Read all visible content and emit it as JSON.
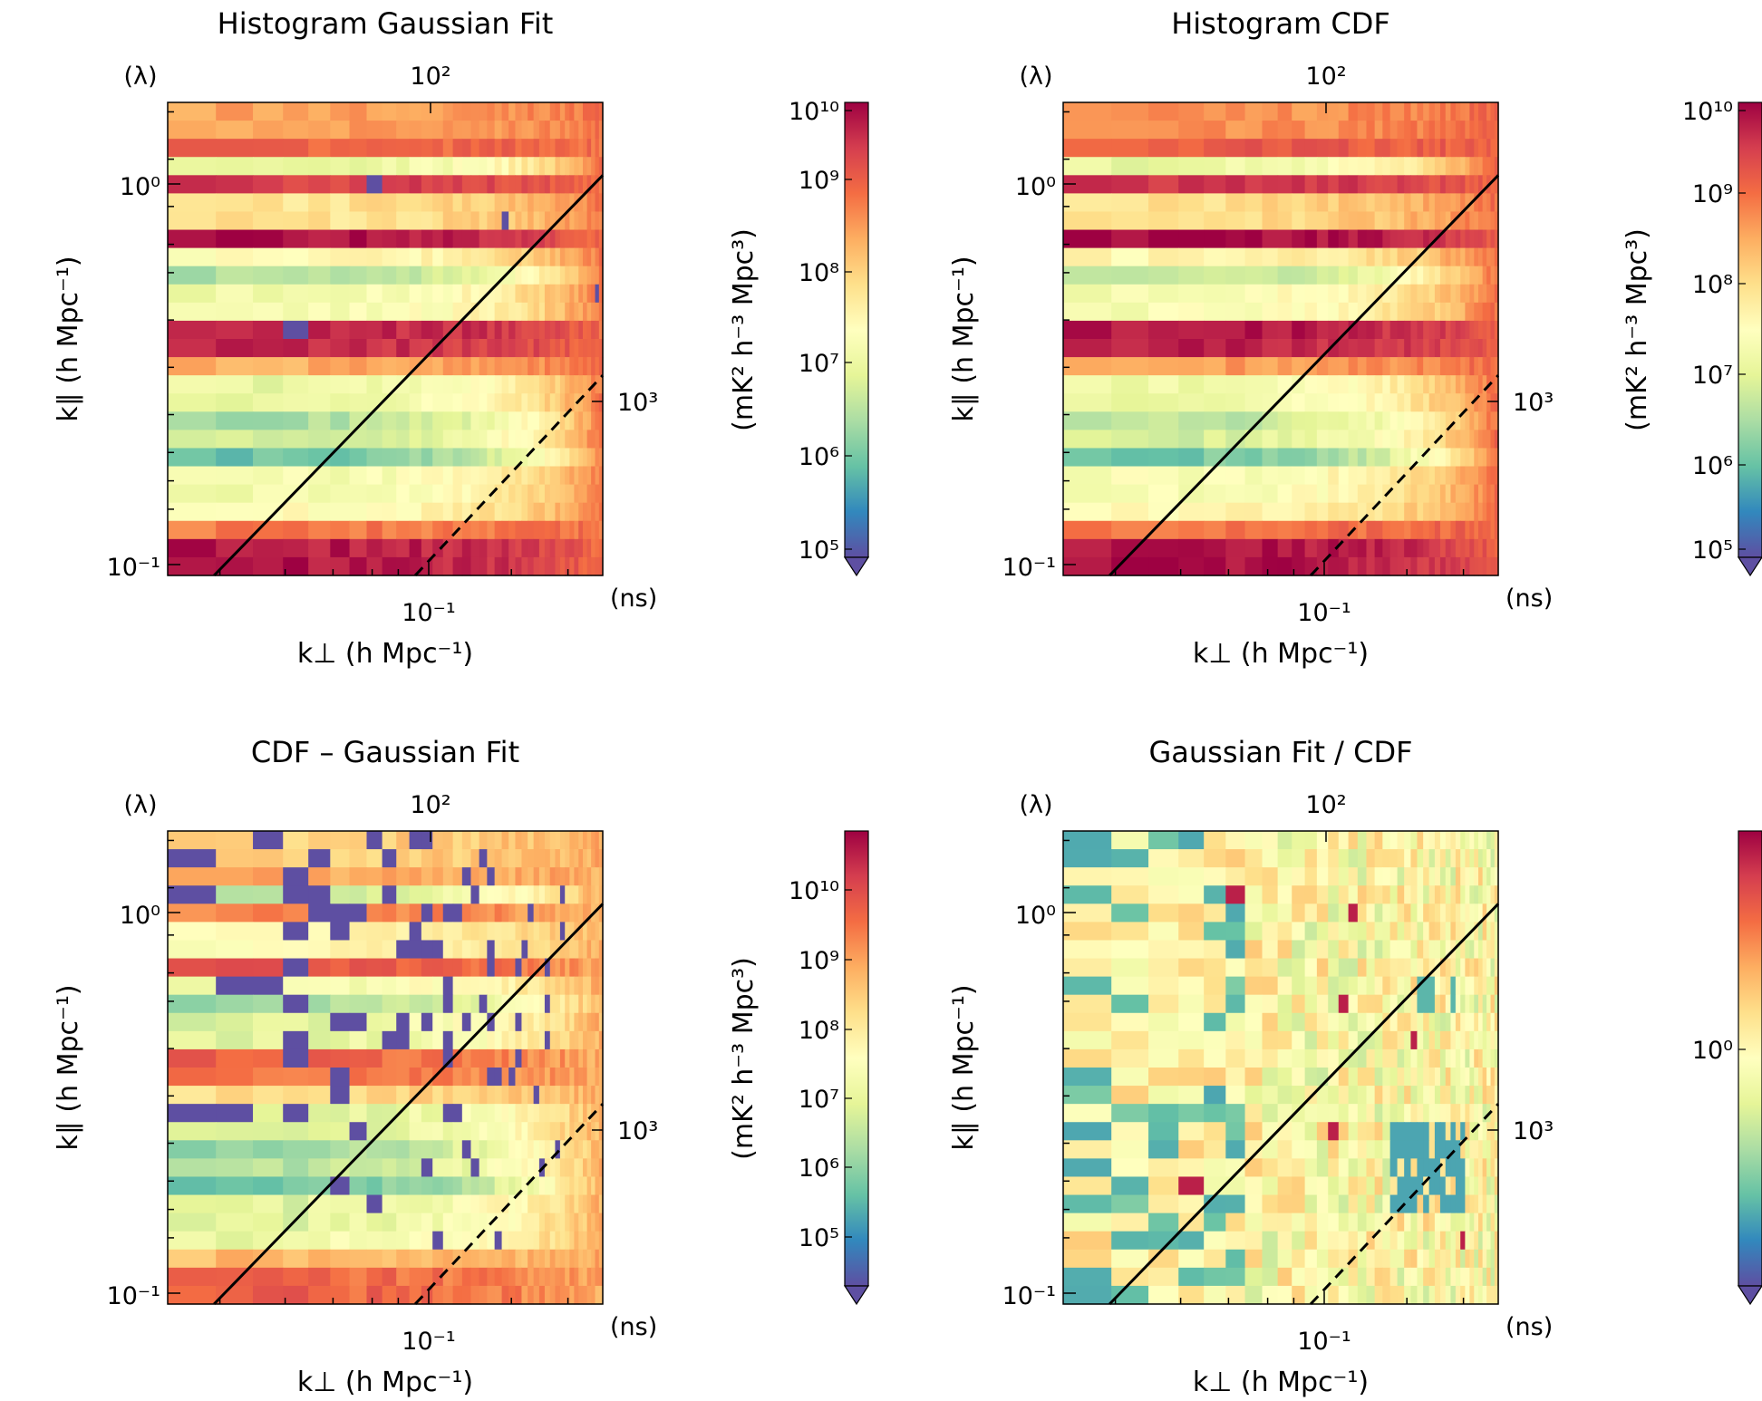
{
  "chart_data": [
    {
      "type": "heatmap",
      "title": "Histogram Gaussian Fit",
      "xlabel": "k⊥ (h Mpc⁻¹)",
      "ylabel": "k∥ (h Mpc⁻¹)",
      "top_axis": {
        "unit": "(λ)",
        "ticks": [
          "10²"
        ]
      },
      "right_axis": {
        "unit": "(ns)",
        "ticks": [
          "10³"
        ]
      },
      "x_ticks": [
        "10⁻¹"
      ],
      "y_ticks": [
        "10⁰",
        "10⁻¹"
      ],
      "x_scale": "log",
      "y_scale": "log",
      "xlim": [
        0.012,
        0.39
      ],
      "ylim": [
        0.09,
        1.55
      ],
      "colorbar": {
        "label": "(mK² h⁻³ Mpc³)",
        "ticks": [
          "10¹⁰",
          "10⁹",
          "10⁸",
          "10⁷",
          "10⁶",
          "10⁵"
        ],
        "scale": "log",
        "range": [
          100000,
          10000000000
        ],
        "extend": "min",
        "colormap": "Spectral_r"
      },
      "lines": [
        {
          "style": "solid",
          "color": "#000000",
          "points": [
            [
              0.0174,
              0.09
            ],
            [
              0.39,
              1.0
            ]
          ]
        },
        {
          "style": "dashed",
          "color": "#000000",
          "points": [
            [
              0.087,
              0.09
            ],
            [
              0.39,
              0.3
            ]
          ]
        }
      ],
      "grid": false
    },
    {
      "type": "heatmap",
      "title": "Histogram CDF",
      "xlabel": "k⊥ (h Mpc⁻¹)",
      "ylabel": "k∥ (h Mpc⁻¹)",
      "top_axis": {
        "unit": "(λ)",
        "ticks": [
          "10²"
        ]
      },
      "right_axis": {
        "unit": "(ns)",
        "ticks": [
          "10³"
        ]
      },
      "x_ticks": [
        "10⁻¹"
      ],
      "y_ticks": [
        "10⁰",
        "10⁻¹"
      ],
      "x_scale": "log",
      "y_scale": "log",
      "xlim": [
        0.012,
        0.39
      ],
      "ylim": [
        0.09,
        1.55
      ],
      "colorbar": {
        "label": "(mK² h⁻³ Mpc³)",
        "ticks": [
          "10¹⁰",
          "10⁹",
          "10⁸",
          "10⁷",
          "10⁶",
          "10⁵"
        ],
        "scale": "log",
        "range": [
          100000,
          10000000000
        ],
        "extend": "min",
        "colormap": "Spectral_r"
      },
      "lines": [
        {
          "style": "solid",
          "color": "#000000",
          "points": [
            [
              0.0174,
              0.09
            ],
            [
              0.39,
              1.0
            ]
          ]
        },
        {
          "style": "dashed",
          "color": "#000000",
          "points": [
            [
              0.087,
              0.09
            ],
            [
              0.39,
              0.3
            ]
          ]
        }
      ],
      "grid": false
    },
    {
      "type": "heatmap",
      "title": "CDF – Gaussian Fit",
      "xlabel": "k⊥ (h Mpc⁻¹)",
      "ylabel": "k∥ (h Mpc⁻¹)",
      "top_axis": {
        "unit": "(λ)",
        "ticks": [
          "10²"
        ]
      },
      "right_axis": {
        "unit": "(ns)",
        "ticks": [
          "10³"
        ]
      },
      "x_ticks": [
        "10⁻¹"
      ],
      "y_ticks": [
        "10⁰",
        "10⁻¹"
      ],
      "x_scale": "log",
      "y_scale": "log",
      "xlim": [
        0.012,
        0.39
      ],
      "ylim": [
        0.09,
        1.55
      ],
      "colorbar": {
        "label": "(mK² h⁻³ Mpc³)",
        "ticks": [
          "10¹⁰",
          "10⁹",
          "10⁸",
          "10⁷",
          "10⁶",
          "10⁵"
        ],
        "scale": "log",
        "range": [
          10000,
          50000000000
        ],
        "extend": "min",
        "colormap": "Spectral_r"
      },
      "lines": [
        {
          "style": "solid",
          "color": "#000000",
          "points": [
            [
              0.0174,
              0.09
            ],
            [
              0.39,
              1.0
            ]
          ]
        },
        {
          "style": "dashed",
          "color": "#000000",
          "points": [
            [
              0.087,
              0.09
            ],
            [
              0.39,
              0.3
            ]
          ]
        }
      ],
      "grid": false
    },
    {
      "type": "heatmap",
      "title": "Gaussian Fit / CDF",
      "xlabel": "k⊥ (h Mpc⁻¹)",
      "ylabel": "k∥ (h Mpc⁻¹)",
      "top_axis": {
        "unit": "(λ)",
        "ticks": [
          "10²"
        ]
      },
      "right_axis": {
        "unit": "(ns)",
        "ticks": [
          "10³"
        ]
      },
      "x_ticks": [
        "10⁻¹"
      ],
      "y_ticks": [
        "10⁰",
        "10⁻¹"
      ],
      "x_scale": "log",
      "y_scale": "log",
      "xlim": [
        0.012,
        0.39
      ],
      "ylim": [
        0.09,
        1.55
      ],
      "colorbar": {
        "label": "",
        "ticks": [
          "10⁰"
        ],
        "scale": "log",
        "range": [
          0.2,
          5
        ],
        "extend": "min",
        "colormap": "Spectral_r"
      },
      "lines": [
        {
          "style": "solid",
          "color": "#000000",
          "points": [
            [
              0.0174,
              0.09
            ],
            [
              0.39,
              1.0
            ]
          ]
        },
        {
          "style": "dashed",
          "color": "#000000",
          "points": [
            [
              0.087,
              0.09
            ],
            [
              0.39,
              0.3
            ]
          ]
        }
      ],
      "grid": false
    }
  ]
}
